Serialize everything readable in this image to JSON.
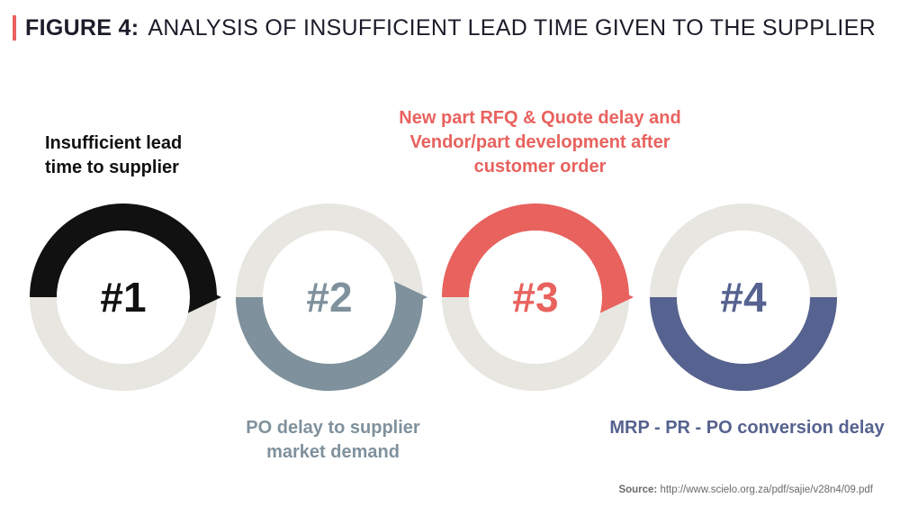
{
  "title": {
    "label": "FIGURE 4:",
    "text": "ANALYSIS OF INSUFFICIENT LEAD TIME GIVEN TO THE SUPPLIER"
  },
  "steps": [
    {
      "number": "#1",
      "caption": "Insufficient lead time to supplier",
      "color": "#111111"
    },
    {
      "number": "#2",
      "caption": "PO delay to supplier market demand",
      "color": "#7f919c"
    },
    {
      "number": "#3",
      "caption": "New part RFQ & Quote delay and Vendor/part development after customer order",
      "color": "#e8625e"
    },
    {
      "number": "#4",
      "caption": "MRP - PR - PO conversion delay",
      "color": "#56628f"
    }
  ],
  "ring_base_color": "#e8e6e1",
  "source": {
    "label": "Source:",
    "url": "http://www.scielo.org.za/pdf/sajie/v28n4/09.pdf"
  }
}
